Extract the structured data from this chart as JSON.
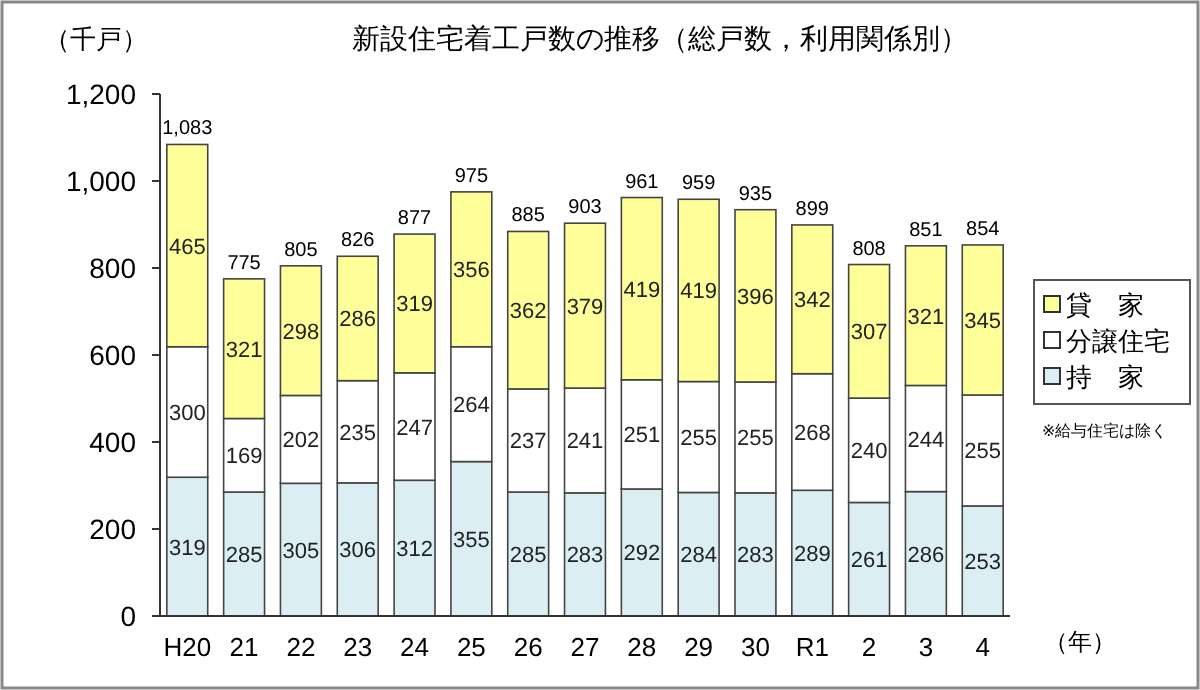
{
  "chart_data": {
    "type": "bar",
    "title": "新設住宅着工戸数の推移（総戸数，利用関係別）",
    "ylabel": "（千戸）",
    "xlabel": "（年）",
    "categories": [
      "H20",
      "21",
      "22",
      "23",
      "24",
      "25",
      "26",
      "27",
      "28",
      "29",
      "30",
      "R1",
      "2",
      "3",
      "4"
    ],
    "stacked": true,
    "data_labels": true,
    "legend": "right",
    "grid": false,
    "ylim": [
      0,
      1200
    ],
    "yticks": [
      0,
      {
        "value": 200,
        "label": "200"
      },
      {
        "value": 400,
        "label": "400"
      },
      {
        "value": 600,
        "label": "600"
      },
      {
        "value": 800,
        "label": "800"
      },
      {
        "value": 1000,
        "label": "1,000"
      },
      {
        "value": 1200,
        "label": "1,200"
      }
    ],
    "series": [
      {
        "name": "持　家",
        "color": "#daeef3",
        "values": [
          319,
          285,
          305,
          306,
          312,
          355,
          285,
          283,
          292,
          284,
          283,
          289,
          261,
          286,
          253
        ]
      },
      {
        "name": "分譲住宅",
        "color": "#ffffff",
        "values": [
          300,
          169,
          202,
          235,
          247,
          264,
          237,
          241,
          251,
          255,
          255,
          268,
          240,
          244,
          255
        ]
      },
      {
        "name": "貸　家",
        "color": "#ffff99",
        "values": [
          465,
          321,
          298,
          286,
          319,
          356,
          362,
          379,
          419,
          419,
          396,
          342,
          307,
          321,
          345
        ]
      }
    ],
    "totals": [
      "1,083",
      "775",
      "805",
      "826",
      "877",
      "975",
      "885",
      "903",
      "961",
      "959",
      "935",
      "899",
      "808",
      "851",
      "854"
    ],
    "annotations": [
      "※給与住宅は除く"
    ]
  }
}
